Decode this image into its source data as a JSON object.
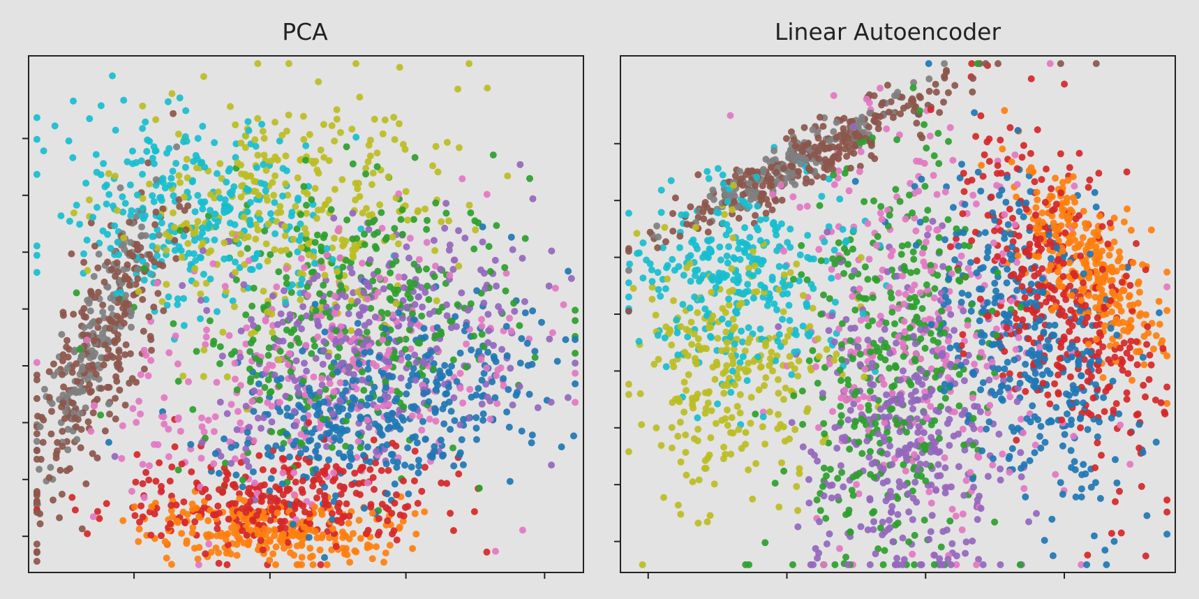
{
  "figure": {
    "background": "#e3e3e3"
  },
  "chart_data": [
    {
      "type": "scatter",
      "title": "PCA",
      "xlabel": "",
      "ylabel": "",
      "tick_labels_visible": false,
      "grid": false,
      "legend": "none",
      "series_colors": [
        "#1f77b4",
        "#ff7f0e",
        "#2ca02c",
        "#d62728",
        "#9467bd",
        "#8c564b",
        "#e377c2",
        "#7f7f7f",
        "#bcbd22",
        "#17becf"
      ],
      "xlim": [
        0,
        1
      ],
      "ylim": [
        0,
        1
      ],
      "xticks": [
        0.19,
        0.435,
        0.68,
        0.93
      ],
      "yticks": [
        0.07,
        0.18,
        0.29,
        0.4,
        0.51,
        0.62,
        0.73,
        0.84
      ],
      "clusters": [
        {
          "color": "#1f77b4",
          "n": 380,
          "cx": 0.64,
          "cy": 0.31,
          "sx": 0.14,
          "sy": 0.08,
          "angle": 20,
          "seed": 11
        },
        {
          "color": "#ff7f0e",
          "n": 260,
          "cx": 0.44,
          "cy": 0.08,
          "sx": 0.11,
          "sy": 0.03,
          "angle": -3,
          "seed": 12
        },
        {
          "color": "#2ca02c",
          "n": 340,
          "cx": 0.55,
          "cy": 0.48,
          "sx": 0.17,
          "sy": 0.13,
          "angle": 25,
          "seed": 13
        },
        {
          "color": "#d62728",
          "n": 300,
          "cx": 0.45,
          "cy": 0.14,
          "sx": 0.15,
          "sy": 0.05,
          "angle": 3,
          "seed": 14
        },
        {
          "color": "#9467bd",
          "n": 330,
          "cx": 0.62,
          "cy": 0.46,
          "sx": 0.15,
          "sy": 0.11,
          "angle": 25,
          "seed": 15
        },
        {
          "color": "#8c564b",
          "n": 260,
          "cx": 0.13,
          "cy": 0.43,
          "sx": 0.04,
          "sy": 0.17,
          "angle": -20,
          "seed": 16
        },
        {
          "color": "#e377c2",
          "n": 300,
          "cx": 0.52,
          "cy": 0.38,
          "sx": 0.2,
          "sy": 0.13,
          "angle": 15,
          "seed": 17
        },
        {
          "color": "#7f7f7f",
          "n": 170,
          "cx": 0.12,
          "cy": 0.45,
          "sx": 0.025,
          "sy": 0.14,
          "angle": -20,
          "seed": 18
        },
        {
          "color": "#bcbd22",
          "n": 320,
          "cx": 0.46,
          "cy": 0.7,
          "sx": 0.16,
          "sy": 0.12,
          "angle": 10,
          "seed": 19
        },
        {
          "color": "#17becf",
          "n": 300,
          "cx": 0.3,
          "cy": 0.7,
          "sx": 0.12,
          "sy": 0.09,
          "angle": -10,
          "seed": 20
        }
      ]
    },
    {
      "type": "scatter",
      "title": "Linear Autoencoder",
      "xlabel": "",
      "ylabel": "",
      "tick_labels_visible": false,
      "grid": false,
      "legend": "none",
      "series_colors": [
        "#1f77b4",
        "#ff7f0e",
        "#2ca02c",
        "#d62728",
        "#9467bd",
        "#8c564b",
        "#e377c2",
        "#7f7f7f",
        "#bcbd22",
        "#17becf"
      ],
      "xlim": [
        0,
        1
      ],
      "ylim": [
        0,
        1
      ],
      "xticks": [
        0.05,
        0.3,
        0.55,
        0.8
      ],
      "yticks": [
        0.06,
        0.17,
        0.28,
        0.39,
        0.5,
        0.61,
        0.72,
        0.83
      ],
      "clusters": [
        {
          "color": "#1f77b4",
          "n": 380,
          "cx": 0.74,
          "cy": 0.45,
          "sx": 0.08,
          "sy": 0.18,
          "angle": 15,
          "seed": 21
        },
        {
          "color": "#ff7f0e",
          "n": 300,
          "cx": 0.84,
          "cy": 0.6,
          "sx": 0.04,
          "sy": 0.1,
          "angle": 30,
          "seed": 22
        },
        {
          "color": "#2ca02c",
          "n": 360,
          "cx": 0.48,
          "cy": 0.38,
          "sx": 0.08,
          "sy": 0.22,
          "angle": -5,
          "seed": 23
        },
        {
          "color": "#d62728",
          "n": 360,
          "cx": 0.79,
          "cy": 0.52,
          "sx": 0.07,
          "sy": 0.17,
          "angle": 20,
          "seed": 24
        },
        {
          "color": "#9467bd",
          "n": 360,
          "cx": 0.52,
          "cy": 0.26,
          "sx": 0.09,
          "sy": 0.16,
          "angle": 0,
          "seed": 25
        },
        {
          "color": "#8c564b",
          "n": 260,
          "cx": 0.36,
          "cy": 0.81,
          "sx": 0.17,
          "sy": 0.025,
          "angle": 30,
          "seed": 26
        },
        {
          "color": "#e377c2",
          "n": 300,
          "cx": 0.55,
          "cy": 0.45,
          "sx": 0.12,
          "sy": 0.21,
          "angle": 5,
          "seed": 27
        },
        {
          "color": "#7f7f7f",
          "n": 170,
          "cx": 0.32,
          "cy": 0.8,
          "sx": 0.12,
          "sy": 0.018,
          "angle": 30,
          "seed": 28
        },
        {
          "color": "#bcbd22",
          "n": 280,
          "cx": 0.2,
          "cy": 0.4,
          "sx": 0.09,
          "sy": 0.12,
          "angle": 0,
          "seed": 29
        },
        {
          "color": "#17becf",
          "n": 300,
          "cx": 0.22,
          "cy": 0.57,
          "sx": 0.1,
          "sy": 0.09,
          "angle": 20,
          "seed": 30
        }
      ]
    }
  ]
}
